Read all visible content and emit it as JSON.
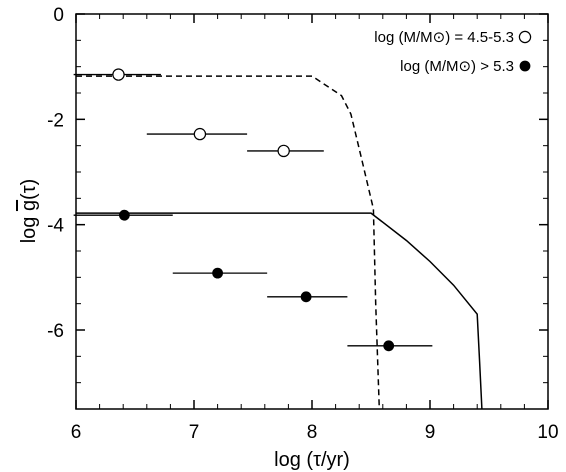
{
  "chart_data": {
    "type": "scatter",
    "xlabel": "log (τ/yr)",
    "ylabel": "log g(τ)",
    "ylabel_main": "log ",
    "ylabel_g": "g",
    "ylabel_tau": "(τ)",
    "xlim": [
      6,
      10
    ],
    "ylim": [
      -7.5,
      0
    ],
    "xticks": [
      "6",
      "7",
      "8",
      "9",
      "10"
    ],
    "yticks": [
      "0",
      "-2",
      "-4",
      "-6"
    ],
    "grid": false,
    "legend_position": "top-right",
    "legend_entries": [
      {
        "label": "log (M/M⊙) = 4.5-5.3",
        "marker": "open-circle"
      },
      {
        "label": "log (M/M⊙) > 5.3",
        "marker": "filled-circle"
      }
    ],
    "series": [
      {
        "marker": "open-circle",
        "points": [
          {
            "x": 6.36,
            "y": -1.15,
            "xerr": [
              5.98,
              6.72
            ]
          },
          {
            "x": 7.05,
            "y": -2.28,
            "xerr": [
              6.6,
              7.45
            ]
          },
          {
            "x": 7.76,
            "y": -2.6,
            "xerr": [
              7.45,
              8.1
            ]
          }
        ]
      },
      {
        "marker": "filled-circle",
        "points": [
          {
            "x": 6.41,
            "y": -3.82,
            "xerr": [
              5.98,
              6.82
            ]
          },
          {
            "x": 7.2,
            "y": -4.92,
            "xerr": [
              6.82,
              7.62
            ]
          },
          {
            "x": 7.95,
            "y": -5.37,
            "xerr": [
              7.62,
              8.3
            ]
          },
          {
            "x": 8.65,
            "y": -6.3,
            "xerr": [
              8.3,
              9.02
            ]
          }
        ]
      }
    ],
    "lines": [
      {
        "style": "dashed",
        "x": [
          6.0,
          8.0,
          8.25,
          8.33,
          8.42,
          8.52,
          8.54,
          8.57
        ],
        "y": [
          -1.18,
          -1.18,
          -1.55,
          -1.9,
          -2.75,
          -3.7,
          -5.5,
          -7.5
        ]
      },
      {
        "style": "solid",
        "x": [
          6.0,
          8.5,
          8.8,
          9.0,
          9.2,
          9.4,
          9.42,
          9.44
        ],
        "y": [
          -3.78,
          -3.78,
          -4.3,
          -4.7,
          -5.15,
          -5.7,
          -6.6,
          -7.5
        ]
      }
    ]
  }
}
